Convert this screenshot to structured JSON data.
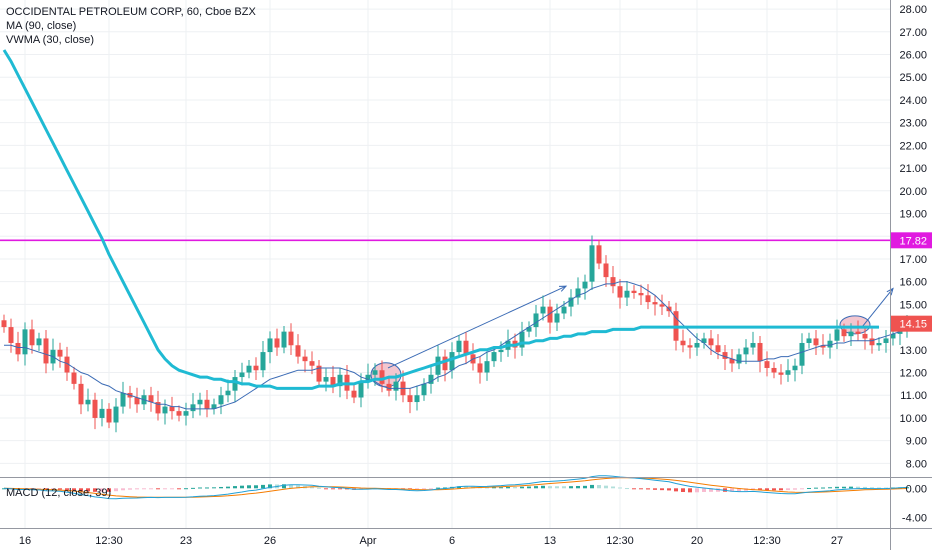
{
  "header": {
    "title": "OCCIDENTAL PETROLEUM CORP, 60, Cboe BZX",
    "ma_label": "MA (90, close)",
    "vwma_label": "VWMA (30, close)",
    "macd_label": "MACD (12, close, 39)"
  },
  "colors": {
    "up": "#26a69a",
    "down": "#ef5350",
    "ma": "#1fbad3",
    "vwma": "#3b6bb5",
    "hline": "#e01ae0",
    "macd_line": "#21a0d6",
    "signal_line": "#f57c00",
    "hist_up": "#26a69a",
    "hist_down": "#ef5350",
    "hist_light": "#b2dfdb",
    "ellipse_fill": "#f3c6cf"
  },
  "chart_data": [
    {
      "type": "candlestick",
      "title": "OCCIDENTAL PETROLEUM CORP, 60, Cboe BZX",
      "ylim": [
        7.4,
        28.4
      ],
      "yticks": [
        "28.00",
        "27.00",
        "26.00",
        "25.00",
        "24.00",
        "23.00",
        "22.00",
        "21.00",
        "20.00",
        "19.00",
        "18.00",
        "17.00",
        "16.00",
        "15.00",
        "14.00",
        "13.00",
        "12.00",
        "11.00",
        "10.00",
        "9.00",
        "8.00"
      ],
      "x_tick_labels": [
        {
          "i": 3,
          "label": "16"
        },
        {
          "i": 15,
          "label": "12:30"
        },
        {
          "i": 26,
          "label": "23"
        },
        {
          "i": 38,
          "label": "26"
        },
        {
          "i": 52,
          "label": "Apr"
        },
        {
          "i": 64,
          "label": "6"
        },
        {
          "i": 78,
          "label": "13"
        },
        {
          "i": 88,
          "label": "12:30"
        },
        {
          "i": 99,
          "label": "20"
        },
        {
          "i": 109,
          "label": "12:30"
        },
        {
          "i": 119,
          "label": "27"
        }
      ],
      "closes": [
        14.0,
        13.3,
        12.8,
        13.9,
        13.2,
        13.5,
        12.4,
        13.0,
        12.7,
        12.0,
        11.5,
        10.6,
        10.8,
        10.0,
        10.4,
        9.8,
        10.5,
        11.1,
        10.9,
        10.6,
        11.0,
        10.7,
        10.2,
        10.5,
        10.3,
        10.1,
        10.3,
        10.6,
        10.8,
        10.4,
        10.6,
        11.0,
        11.2,
        11.8,
        12.0,
        12.3,
        12.1,
        12.9,
        13.5,
        13.1,
        13.8,
        13.2,
        12.7,
        12.5,
        12.3,
        11.6,
        11.8,
        11.4,
        11.9,
        11.2,
        10.9,
        11.6,
        11.9,
        12.1,
        11.5,
        11.2,
        11.6,
        11.0,
        10.7,
        11.0,
        11.5,
        11.9,
        12.7,
        12.1,
        12.9,
        13.4,
        12.8,
        12.4,
        12.0,
        12.5,
        12.9,
        13.0,
        13.4,
        13.1,
        13.8,
        14.0,
        14.6,
        14.9,
        14.2,
        14.6,
        14.9,
        15.3,
        15.7,
        16.0,
        17.6,
        16.8,
        16.2,
        15.8,
        15.3,
        15.6,
        15.5,
        15.4,
        15.1,
        15.0,
        14.9,
        14.7,
        13.4,
        13.2,
        13.1,
        13.3,
        13.5,
        13.2,
        12.9,
        12.6,
        12.4,
        12.8,
        13.1,
        13.3,
        12.5,
        12.2,
        12.0,
        11.9,
        12.1,
        12.3,
        13.3,
        13.5,
        13.2,
        13.1,
        13.4,
        13.9,
        13.6,
        13.8,
        13.7,
        13.5,
        13.2,
        13.3,
        13.5,
        13.7,
        13.9,
        14.1
      ],
      "ma_90": [
        26.2,
        25.7,
        25.1,
        24.5,
        23.9,
        23.3,
        22.7,
        22.1,
        21.5,
        20.9,
        20.3,
        19.7,
        19.1,
        18.5,
        17.9,
        17.2,
        16.6,
        16.0,
        15.4,
        14.8,
        14.2,
        13.6,
        13.0,
        12.6,
        12.3,
        12.1,
        12.0,
        11.9,
        11.8,
        11.8,
        11.7,
        11.7,
        11.6,
        11.6,
        11.5,
        11.5,
        11.4,
        11.4,
        11.4,
        11.3,
        11.3,
        11.3,
        11.3,
        11.3,
        11.3,
        11.4,
        11.4,
        11.4,
        11.5,
        11.5,
        11.5,
        11.6,
        11.6,
        11.7,
        11.7,
        11.8,
        11.8,
        11.9,
        12.0,
        12.1,
        12.2,
        12.3,
        12.4,
        12.5,
        12.6,
        12.7,
        12.8,
        12.9,
        13.0,
        13.0,
        13.1,
        13.1,
        13.2,
        13.2,
        13.3,
        13.3,
        13.4,
        13.4,
        13.5,
        13.5,
        13.6,
        13.6,
        13.7,
        13.7,
        13.8,
        13.8,
        13.8,
        13.9,
        13.9,
        13.9,
        13.9,
        14.0,
        14.0,
        14.0,
        14.0,
        14.0,
        14.0,
        14.0,
        14.0,
        14.0,
        14.0,
        14.0,
        14.0,
        14.0,
        14.0,
        14.0,
        14.0,
        14.0,
        14.0,
        14.0,
        14.0,
        14.0,
        14.0,
        14.0,
        14.0,
        14.0,
        14.0,
        14.0,
        14.0,
        14.0,
        14.0,
        14.0,
        14.0,
        14.0,
        14.0,
        14.0
      ],
      "vwma_30": [
        13.2,
        13.2,
        13.1,
        13.1,
        13.0,
        12.9,
        12.8,
        12.7,
        12.5,
        12.4,
        12.2,
        12.0,
        11.9,
        11.7,
        11.5,
        11.4,
        11.2,
        11.1,
        11.0,
        10.9,
        10.8,
        10.7,
        10.6,
        10.6,
        10.5,
        10.5,
        10.4,
        10.4,
        10.4,
        10.4,
        10.4,
        10.5,
        10.6,
        10.7,
        10.9,
        11.1,
        11.3,
        11.5,
        11.7,
        11.8,
        11.9,
        12.0,
        12.1,
        12.1,
        12.1,
        12.2,
        12.2,
        12.2,
        12.2,
        12.1,
        12.0,
        11.8,
        11.7,
        11.6,
        11.4,
        11.3,
        11.3,
        11.3,
        11.3,
        11.4,
        11.5,
        11.6,
        11.8,
        11.9,
        12.1,
        12.3,
        12.4,
        12.6,
        12.7,
        12.9,
        13.0,
        13.2,
        13.4,
        13.6,
        13.8,
        14.0,
        14.2,
        14.4,
        14.6,
        14.8,
        15.0,
        15.2,
        15.4,
        15.5,
        15.7,
        15.8,
        15.9,
        15.9,
        16.0,
        16.0,
        15.9,
        15.8,
        15.6,
        15.4,
        15.1,
        14.8,
        14.4,
        14.1,
        13.8,
        13.5,
        13.3,
        13.0,
        12.8,
        12.7,
        12.6,
        12.5,
        12.5,
        12.5,
        12.5,
        12.6,
        12.6,
        12.7,
        12.7,
        12.8,
        12.9,
        13.0,
        13.1,
        13.2,
        13.2,
        13.3,
        13.3,
        13.4,
        13.4,
        13.4,
        13.4,
        13.5,
        13.6,
        13.7,
        13.8
      ],
      "horizontal_line": {
        "value": 17.82,
        "label": "17.82"
      },
      "last_price": {
        "value": 14.15,
        "label": "14.15"
      }
    },
    {
      "type": "bar",
      "title": "MACD (12, close, 39)",
      "ylim": [
        -5.4,
        1.4
      ],
      "yticks": [
        "0.00",
        "-4.00"
      ]
    }
  ]
}
